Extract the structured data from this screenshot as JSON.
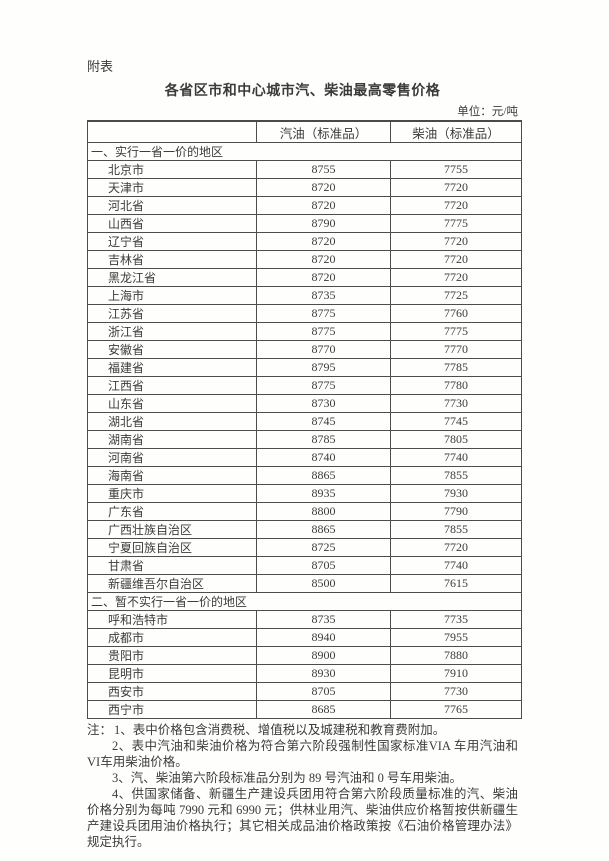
{
  "page": {
    "appendix_label": "附表",
    "title": "各省区市和中心城市汽、柴油最高零售价格",
    "unit_label": "单位：元/吨"
  },
  "table": {
    "columns": [
      "",
      "汽油（标准品）",
      "柴油（标准品）"
    ],
    "sections": [
      {
        "header": "一、实行一省一价的地区",
        "rows": [
          {
            "region": "北京市",
            "gasoline": "8755",
            "diesel": "7755"
          },
          {
            "region": "天津市",
            "gasoline": "8720",
            "diesel": "7720"
          },
          {
            "region": "河北省",
            "gasoline": "8720",
            "diesel": "7720"
          },
          {
            "region": "山西省",
            "gasoline": "8790",
            "diesel": "7775"
          },
          {
            "region": "辽宁省",
            "gasoline": "8720",
            "diesel": "7720"
          },
          {
            "region": "吉林省",
            "gasoline": "8720",
            "diesel": "7720"
          },
          {
            "region": "黑龙江省",
            "gasoline": "8720",
            "diesel": "7720"
          },
          {
            "region": "上海市",
            "gasoline": "8735",
            "diesel": "7725"
          },
          {
            "region": "江苏省",
            "gasoline": "8775",
            "diesel": "7760"
          },
          {
            "region": "浙江省",
            "gasoline": "8775",
            "diesel": "7775"
          },
          {
            "region": "安徽省",
            "gasoline": "8770",
            "diesel": "7770"
          },
          {
            "region": "福建省",
            "gasoline": "8795",
            "diesel": "7785"
          },
          {
            "region": "江西省",
            "gasoline": "8775",
            "diesel": "7780"
          },
          {
            "region": "山东省",
            "gasoline": "8730",
            "diesel": "7730"
          },
          {
            "region": "湖北省",
            "gasoline": "8745",
            "diesel": "7745"
          },
          {
            "region": "湖南省",
            "gasoline": "8785",
            "diesel": "7805"
          },
          {
            "region": "河南省",
            "gasoline": "8740",
            "diesel": "7740"
          },
          {
            "region": "海南省",
            "gasoline": "8865",
            "diesel": "7855"
          },
          {
            "region": "重庆市",
            "gasoline": "8935",
            "diesel": "7930"
          },
          {
            "region": "广东省",
            "gasoline": "8800",
            "diesel": "7790"
          },
          {
            "region": "广西壮族自治区",
            "gasoline": "8865",
            "diesel": "7855"
          },
          {
            "region": "宁夏回族自治区",
            "gasoline": "8725",
            "diesel": "7720"
          },
          {
            "region": "甘肃省",
            "gasoline": "8705",
            "diesel": "7740"
          },
          {
            "region": "新疆维吾尔自治区",
            "gasoline": "8500",
            "diesel": "7615"
          }
        ]
      },
      {
        "header": "二、暂不实行一省一价的地区",
        "rows": [
          {
            "region": "呼和浩特市",
            "gasoline": "8735",
            "diesel": "7735"
          },
          {
            "region": "成都市",
            "gasoline": "8940",
            "diesel": "7955"
          },
          {
            "region": "贵阳市",
            "gasoline": "8900",
            "diesel": "7880"
          },
          {
            "region": "昆明市",
            "gasoline": "8930",
            "diesel": "7910"
          },
          {
            "region": "西安市",
            "gasoline": "8705",
            "diesel": "7730"
          },
          {
            "region": "西宁市",
            "gasoline": "8685",
            "diesel": "7765"
          }
        ]
      }
    ]
  },
  "notes": {
    "label": "注：",
    "items": [
      "1、表中价格包含消费税、增值税以及城建税和教育费附加。",
      "2、表中汽油和柴油价格为符合第六阶段强制性国家标准VIA 车用汽油和VI车用柴油价格。",
      "3、汽、柴油第六阶段标准品分别为 89 号汽油和 0 号车用柴油。",
      "4、供国家储备、新疆生产建设兵团用符合第六阶段质量标准的汽、柴油价格分别为每吨 7990 元和 6990 元；供林业用汽、柴油供应价格暂按供新疆生产建设兵团用油价格执行；其它相关成品油价格政策按《石油价格管理办法》规定执行。"
    ]
  },
  "colors": {
    "text": "#3b3b3b",
    "border": "#4d4d4d",
    "page_background": "#fefefd"
  }
}
